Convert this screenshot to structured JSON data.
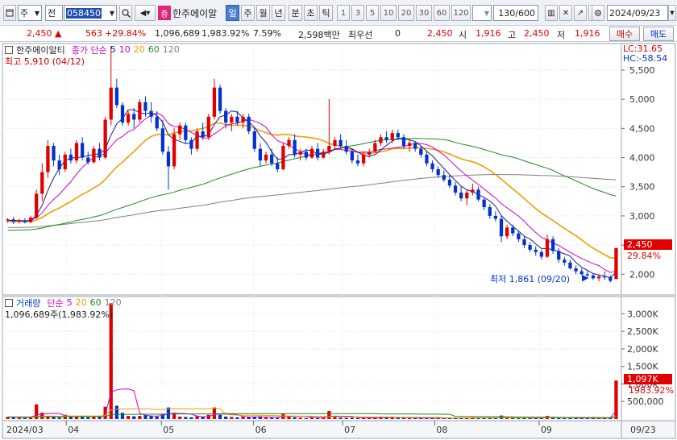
{
  "toolbar": {
    "market_label": "주",
    "market2_label": "전",
    "code_value": "058450",
    "stock_badge": "증",
    "stock_name": "한주에이알",
    "periods": [
      "일",
      "주",
      "월",
      "년",
      "분",
      "초",
      "틱"
    ],
    "active_period": "일",
    "intervals": [
      "1",
      "3",
      "5",
      "10",
      "20",
      "30",
      "60",
      "120"
    ],
    "count_value": "130",
    "count_total": "/600",
    "date_value": "2024/09/23"
  },
  "quote": {
    "price": "2,450",
    "change": "563",
    "change_pct": "+29.84%",
    "volume": "1,096,689",
    "volume_pct": "1,983.92%",
    "turnover": "7.59%",
    "amount": "2,598백만",
    "best_label": "최우선",
    "best_value": "0",
    "price2": "2,450",
    "open_label": "시",
    "open_value": "1,916",
    "high_label": "고",
    "high_value": "2,450",
    "low_label": "저",
    "low_value": "1,916",
    "buy_label": "매수",
    "sell_label": "매도"
  },
  "price_panel": {
    "title": "한주에이알티",
    "ind_name": "종가 단순",
    "ma_labels": [
      "5",
      "10",
      "20",
      "60",
      "120"
    ],
    "lc_label": "LC:31.65",
    "hc_label": "HC:-58.54",
    "high_annotation": "최고 5,910 (04/12)",
    "low_annotation": "최저 1,861 (09/20)",
    "last_price_tag": "2,450",
    "last_pct_tag": "29.84%",
    "y_ticks": [
      "5,500",
      "5,000",
      "4,500",
      "4,000",
      "3,500",
      "3,000",
      "2,500",
      "2,000"
    ]
  },
  "volume_panel": {
    "title": "거래량",
    "ind_name": "단순",
    "ma_labels": [
      "5",
      "20",
      "60",
      "120"
    ],
    "value_label": "1,096,689주(1,983.92%)",
    "last_vol_tag": "1,097K",
    "last_vol_pct_tag": "1983.92%",
    "y_ticks": [
      "3,000K",
      "2,500K",
      "2,000K",
      "1,500K",
      "1,000K",
      "500,000"
    ]
  },
  "x_axis": {
    "labels": [
      "2024/03",
      "04",
      "05",
      "06",
      "07",
      "08",
      "09"
    ],
    "right_label": "09/23"
  },
  "colors": {
    "up": "#e00000",
    "down": "#0033cc",
    "ma5": "#1a1a8c",
    "ma10": "#cc00cc",
    "ma20": "#e8a000",
    "ma60": "#1f8a1f",
    "ma120": "#808080"
  },
  "chart_data": {
    "type": "candlestick",
    "ylim": [
      1700,
      5900
    ],
    "vol_ylim": [
      0,
      3400000
    ],
    "candles": [
      [
        2920,
        2960,
        2880,
        2940
      ],
      [
        2940,
        2980,
        2860,
        2900
      ],
      [
        2900,
        2950,
        2870,
        2920
      ],
      [
        2920,
        2960,
        2870,
        2890
      ],
      [
        2890,
        3000,
        2880,
        2970
      ],
      [
        2970,
        3450,
        2950,
        3380
      ],
      [
        3380,
        3900,
        3250,
        3750
      ],
      [
        3750,
        4300,
        3650,
        4200
      ],
      [
        4200,
        4250,
        3850,
        3950
      ],
      [
        3950,
        4050,
        3700,
        3800
      ],
      [
        3800,
        4100,
        3750,
        4050
      ],
      [
        4050,
        4150,
        3900,
        3950
      ],
      [
        3950,
        4300,
        3900,
        4250
      ],
      [
        4250,
        4350,
        3950,
        4000
      ],
      [
        4000,
        4100,
        3880,
        3920
      ],
      [
        3920,
        4200,
        3900,
        4150
      ],
      [
        4150,
        4250,
        3950,
        4000
      ],
      [
        4000,
        4700,
        3980,
        4650
      ],
      [
        4650,
        5910,
        4550,
        5200
      ],
      [
        5200,
        5350,
        4850,
        4900
      ],
      [
        4900,
        4950,
        4550,
        4600
      ],
      [
        4600,
        4800,
        4550,
        4750
      ],
      [
        4750,
        4850,
        4500,
        4650
      ],
      [
        4650,
        5000,
        4600,
        4950
      ],
      [
        4950,
        5050,
        4700,
        4800
      ],
      [
        4800,
        4950,
        4600,
        4700
      ],
      [
        4700,
        4800,
        4450,
        4500
      ],
      [
        4500,
        4650,
        4050,
        4100
      ],
      [
        4100,
        4200,
        3450,
        3850
      ],
      [
        3850,
        4500,
        3800,
        4400
      ],
      [
        4400,
        4600,
        4300,
        4550
      ],
      [
        4550,
        4600,
        4250,
        4300
      ],
      [
        4300,
        4350,
        4050,
        4150
      ],
      [
        4150,
        4500,
        4100,
        4450
      ],
      [
        4450,
        4600,
        4300,
        4350
      ],
      [
        4350,
        4750,
        4300,
        4700
      ],
      [
        4700,
        5350,
        4650,
        5200
      ],
      [
        5200,
        5250,
        4750,
        4800
      ],
      [
        4800,
        4850,
        4500,
        4600
      ],
      [
        4600,
        4750,
        4450,
        4700
      ],
      [
        4700,
        4800,
        4550,
        4600
      ],
      [
        4600,
        4750,
        4500,
        4700
      ],
      [
        4700,
        4750,
        4400,
        4450
      ],
      [
        4450,
        4500,
        4100,
        4150
      ],
      [
        4150,
        4250,
        3850,
        3950
      ],
      [
        3950,
        4100,
        3900,
        4050
      ],
      [
        4050,
        4150,
        3850,
        3900
      ],
      [
        3900,
        4000,
        3750,
        3800
      ],
      [
        3800,
        4250,
        3780,
        4200
      ],
      [
        4200,
        4350,
        4150,
        4300
      ],
      [
        4300,
        4400,
        4000,
        4050
      ],
      [
        4050,
        4150,
        3950,
        4100
      ],
      [
        4100,
        4150,
        3950,
        4000
      ],
      [
        4000,
        4200,
        3980,
        4150
      ],
      [
        4150,
        4250,
        3950,
        4000
      ],
      [
        4000,
        4150,
        3980,
        4100
      ],
      [
        4100,
        5000,
        4050,
        4200
      ],
      [
        4200,
        4350,
        4150,
        4300
      ],
      [
        4300,
        4400,
        4150,
        4200
      ],
      [
        4200,
        4300,
        4050,
        4100
      ],
      [
        4100,
        4150,
        3900,
        3950
      ],
      [
        3950,
        4050,
        3850,
        3900
      ],
      [
        3900,
        4100,
        3850,
        4050
      ],
      [
        4050,
        4150,
        4000,
        4100
      ],
      [
        4100,
        4300,
        4080,
        4250
      ],
      [
        4250,
        4400,
        4200,
        4350
      ],
      [
        4350,
        4450,
        4250,
        4300
      ],
      [
        4300,
        4480,
        4250,
        4420
      ],
      [
        4420,
        4480,
        4300,
        4350
      ],
      [
        4350,
        4400,
        4150,
        4200
      ],
      [
        4200,
        4300,
        4100,
        4250
      ],
      [
        4250,
        4280,
        4100,
        4150
      ],
      [
        4150,
        4200,
        4000,
        4050
      ],
      [
        4050,
        4100,
        3850,
        3900
      ],
      [
        3900,
        3950,
        3750,
        3800
      ],
      [
        3800,
        3850,
        3650,
        3700
      ],
      [
        3700,
        3780,
        3580,
        3620
      ],
      [
        3620,
        3700,
        3480,
        3520
      ],
      [
        3520,
        3580,
        3350,
        3400
      ],
      [
        3400,
        3500,
        3250,
        3300
      ],
      [
        3300,
        3450,
        3180,
        3400
      ],
      [
        3400,
        3550,
        3350,
        3450
      ],
      [
        3450,
        3500,
        3250,
        3280
      ],
      [
        3280,
        3300,
        3100,
        3150
      ],
      [
        3150,
        3200,
        2950,
        3000
      ],
      [
        3000,
        3080,
        2900,
        2950
      ],
      [
        2950,
        3000,
        2550,
        2650
      ],
      [
        2650,
        2850,
        2600,
        2800
      ],
      [
        2800,
        2850,
        2650,
        2700
      ],
      [
        2700,
        2750,
        2550,
        2600
      ],
      [
        2600,
        2650,
        2450,
        2500
      ],
      [
        2500,
        2550,
        2380,
        2420
      ],
      [
        2420,
        2480,
        2320,
        2380
      ],
      [
        2380,
        2420,
        2250,
        2300
      ],
      [
        2300,
        2680,
        2280,
        2600
      ],
      [
        2600,
        2650,
        2350,
        2400
      ],
      [
        2400,
        2450,
        2200,
        2250
      ],
      [
        2250,
        2300,
        2150,
        2200
      ],
      [
        2200,
        2250,
        2080,
        2100
      ],
      [
        2100,
        2150,
        2000,
        2050
      ],
      [
        2050,
        2100,
        1980,
        2000
      ],
      [
        2000,
        2050,
        1950,
        1980
      ],
      [
        1980,
        2000,
        1900,
        1930
      ],
      [
        1930,
        2000,
        1880,
        1960
      ],
      [
        1960,
        2050,
        1900,
        1950
      ],
      [
        1950,
        1980,
        1861,
        1887
      ],
      [
        1916,
        2450,
        1916,
        2450
      ]
    ],
    "volume": [
      60000,
      45000,
      40000,
      30000,
      50000,
      420000,
      180000,
      90000,
      60000,
      45000,
      120000,
      80000,
      90000,
      70000,
      50000,
      60000,
      70000,
      350000,
      3300000,
      380000,
      180000,
      90000,
      80000,
      90000,
      110000,
      80000,
      70000,
      150000,
      330000,
      180000,
      70000,
      60000,
      50000,
      80000,
      60000,
      120000,
      330000,
      120000,
      70000,
      60000,
      50000,
      60000,
      55000,
      70000,
      80000,
      45000,
      40000,
      35000,
      160000,
      90000,
      50000,
      40000,
      30000,
      45000,
      40000,
      35000,
      230000,
      60000,
      40000,
      35000,
      40000,
      30000,
      35000,
      30000,
      50000,
      60000,
      40000,
      45000,
      35000,
      30000,
      30000,
      28000,
      30000,
      35000,
      30000,
      28000,
      25000,
      30000,
      35000,
      30000,
      40000,
      50000,
      30000,
      35000,
      40000,
      30000,
      100000,
      50000,
      30000,
      28000,
      30000,
      25000,
      30000,
      30000,
      90000,
      40000,
      30000,
      25000,
      25000,
      30000,
      25000,
      30000,
      25000,
      30000,
      25000,
      40000,
      1096689
    ]
  }
}
